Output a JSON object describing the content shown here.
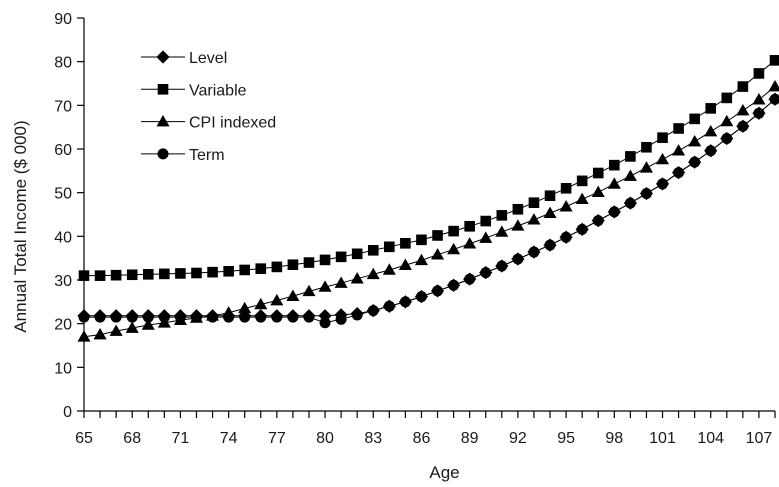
{
  "chart_data": {
    "type": "line",
    "title": "",
    "xlabel": "Age",
    "ylabel": "Annual Total Income ($ 000)",
    "xlim": [
      65,
      108
    ],
    "ylim": [
      0,
      90
    ],
    "xticks": [
      65,
      68,
      71,
      74,
      77,
      80,
      83,
      86,
      89,
      92,
      95,
      98,
      101,
      104,
      107
    ],
    "yticks": [
      0,
      10,
      20,
      30,
      40,
      50,
      60,
      70,
      80,
      90
    ],
    "grid": false,
    "legend_position": "top-left",
    "x": [
      65,
      66,
      67,
      68,
      69,
      70,
      71,
      72,
      73,
      74,
      75,
      76,
      77,
      78,
      79,
      80,
      81,
      82,
      83,
      84,
      85,
      86,
      87,
      88,
      89,
      90,
      91,
      92,
      93,
      94,
      95,
      96,
      97,
      98,
      99,
      100,
      101,
      102,
      103,
      104,
      105,
      106,
      107,
      108
    ],
    "series": [
      {
        "name": "Level",
        "marker": "diamond",
        "values": [
          21.8,
          21.8,
          21.8,
          21.8,
          21.8,
          21.8,
          21.8,
          21.8,
          21.8,
          21.8,
          21.8,
          21.8,
          21.8,
          21.8,
          21.8,
          21.8,
          22.0,
          22.3,
          23.0,
          24.0,
          25.0,
          26.2,
          27.5,
          28.8,
          30.2,
          31.7,
          33.2,
          34.8,
          36.4,
          38.0,
          39.8,
          41.6,
          43.6,
          45.6,
          47.6,
          49.8,
          52.0,
          54.6,
          57.0,
          59.6,
          62.4,
          65.2,
          68.2,
          71.4
        ]
      },
      {
        "name": "Variable",
        "marker": "square",
        "values": [
          31.0,
          31.0,
          31.1,
          31.2,
          31.3,
          31.4,
          31.5,
          31.6,
          31.8,
          32.0,
          32.3,
          32.6,
          33.0,
          33.5,
          34.0,
          34.6,
          35.3,
          36.0,
          36.8,
          37.6,
          38.4,
          39.2,
          40.2,
          41.2,
          42.3,
          43.5,
          44.8,
          46.2,
          47.7,
          49.3,
          51.0,
          52.7,
          54.5,
          56.3,
          58.3,
          60.4,
          62.6,
          64.7,
          66.9,
          69.3,
          71.7,
          74.3,
          77.3,
          80.3
        ]
      },
      {
        "name": "CPI indexed",
        "marker": "triangle",
        "values": [
          17.0,
          17.5,
          18.3,
          19.0,
          19.7,
          20.2,
          20.8,
          21.3,
          21.8,
          22.5,
          23.5,
          24.4,
          25.3,
          26.3,
          27.4,
          28.4,
          29.3,
          30.3,
          31.3,
          32.3,
          33.4,
          34.5,
          35.8,
          37.0,
          38.3,
          39.6,
          41.0,
          42.4,
          43.8,
          45.3,
          46.8,
          48.5,
          50.1,
          52.0,
          53.8,
          55.7,
          57.6,
          59.6,
          61.7,
          64.0,
          66.3,
          68.8,
          71.3,
          74.3
        ]
      },
      {
        "name": "Term",
        "marker": "circle",
        "values": [
          21.5,
          21.5,
          21.5,
          21.5,
          21.5,
          21.5,
          21.5,
          21.5,
          21.5,
          21.5,
          21.5,
          21.5,
          21.5,
          21.5,
          21.5,
          20.2,
          21.0,
          22.0,
          23.0,
          24.0,
          25.0,
          26.2,
          27.5,
          28.8,
          30.2,
          31.7,
          33.2,
          34.8,
          36.4,
          38.0,
          39.8,
          41.6,
          43.6,
          45.6,
          47.6,
          49.8,
          52.0,
          54.6,
          57.0,
          59.6,
          62.4,
          65.2,
          68.2,
          71.4
        ]
      }
    ]
  }
}
